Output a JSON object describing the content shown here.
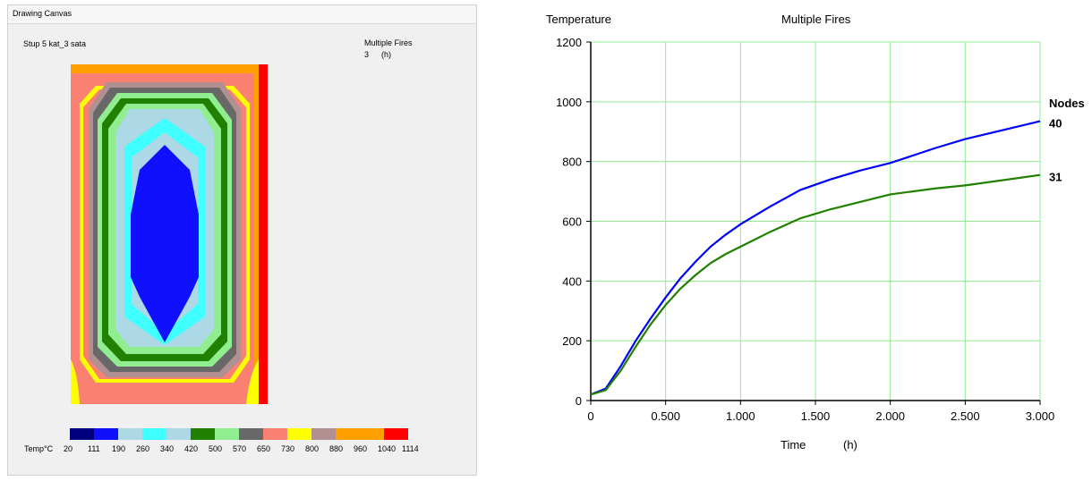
{
  "window": {
    "title": "Drawing Canvas"
  },
  "canvas": {
    "project_name": "Stup 5 kat_3 sata",
    "fire_label": "Multiple Fires",
    "time_value": "3",
    "time_unit": "(h)",
    "legend": {
      "title": "Temp°C",
      "values": [
        "20",
        "111",
        "190",
        "260",
        "340",
        "420",
        "500",
        "570",
        "650",
        "730",
        "800",
        "880",
        "960",
        "1040",
        "1114"
      ],
      "colors": [
        "#00007f",
        "#1010ff",
        "#add8e6",
        "#40ffff",
        "#add8e6",
        "#208000",
        "#90ee90",
        "#686868",
        "#fa8072",
        "#ffff00",
        "#b09090",
        "#ffa000",
        "#ffa000",
        "#ff0000"
      ]
    }
  },
  "chart_data": {
    "type": "line",
    "title": "Multiple Fires",
    "ylabel": "Temperature",
    "xlabel": "Time",
    "xunit": "(h)",
    "xlim": [
      0,
      3
    ],
    "ylim": [
      0,
      1200
    ],
    "xticks": [
      "0",
      "0.500",
      "1.000",
      "1.500",
      "2.000",
      "2.500",
      "3.000"
    ],
    "yticks": [
      "0",
      "200",
      "400",
      "600",
      "800",
      "1000",
      "1200"
    ],
    "grid": true,
    "grid_color": "#90ee90",
    "legend_title": "Nodes",
    "series": [
      {
        "name": "40",
        "color": "#0000ff",
        "x": [
          0,
          0.1,
          0.2,
          0.3,
          0.4,
          0.5,
          0.6,
          0.7,
          0.8,
          0.9,
          1.0,
          1.2,
          1.4,
          1.6,
          1.8,
          2.0,
          2.3,
          2.5,
          3.0
        ],
        "y": [
          20,
          40,
          115,
          200,
          275,
          345,
          410,
          465,
          515,
          555,
          590,
          650,
          705,
          740,
          770,
          795,
          845,
          875,
          935
        ]
      },
      {
        "name": "31",
        "color": "#208000",
        "x": [
          0,
          0.1,
          0.2,
          0.3,
          0.4,
          0.5,
          0.6,
          0.7,
          0.8,
          0.9,
          1.0,
          1.2,
          1.4,
          1.6,
          1.8,
          2.0,
          2.3,
          2.5,
          3.0
        ],
        "y": [
          20,
          35,
          100,
          180,
          255,
          320,
          375,
          420,
          460,
          490,
          515,
          565,
          610,
          640,
          665,
          690,
          710,
          720,
          755
        ]
      }
    ]
  }
}
